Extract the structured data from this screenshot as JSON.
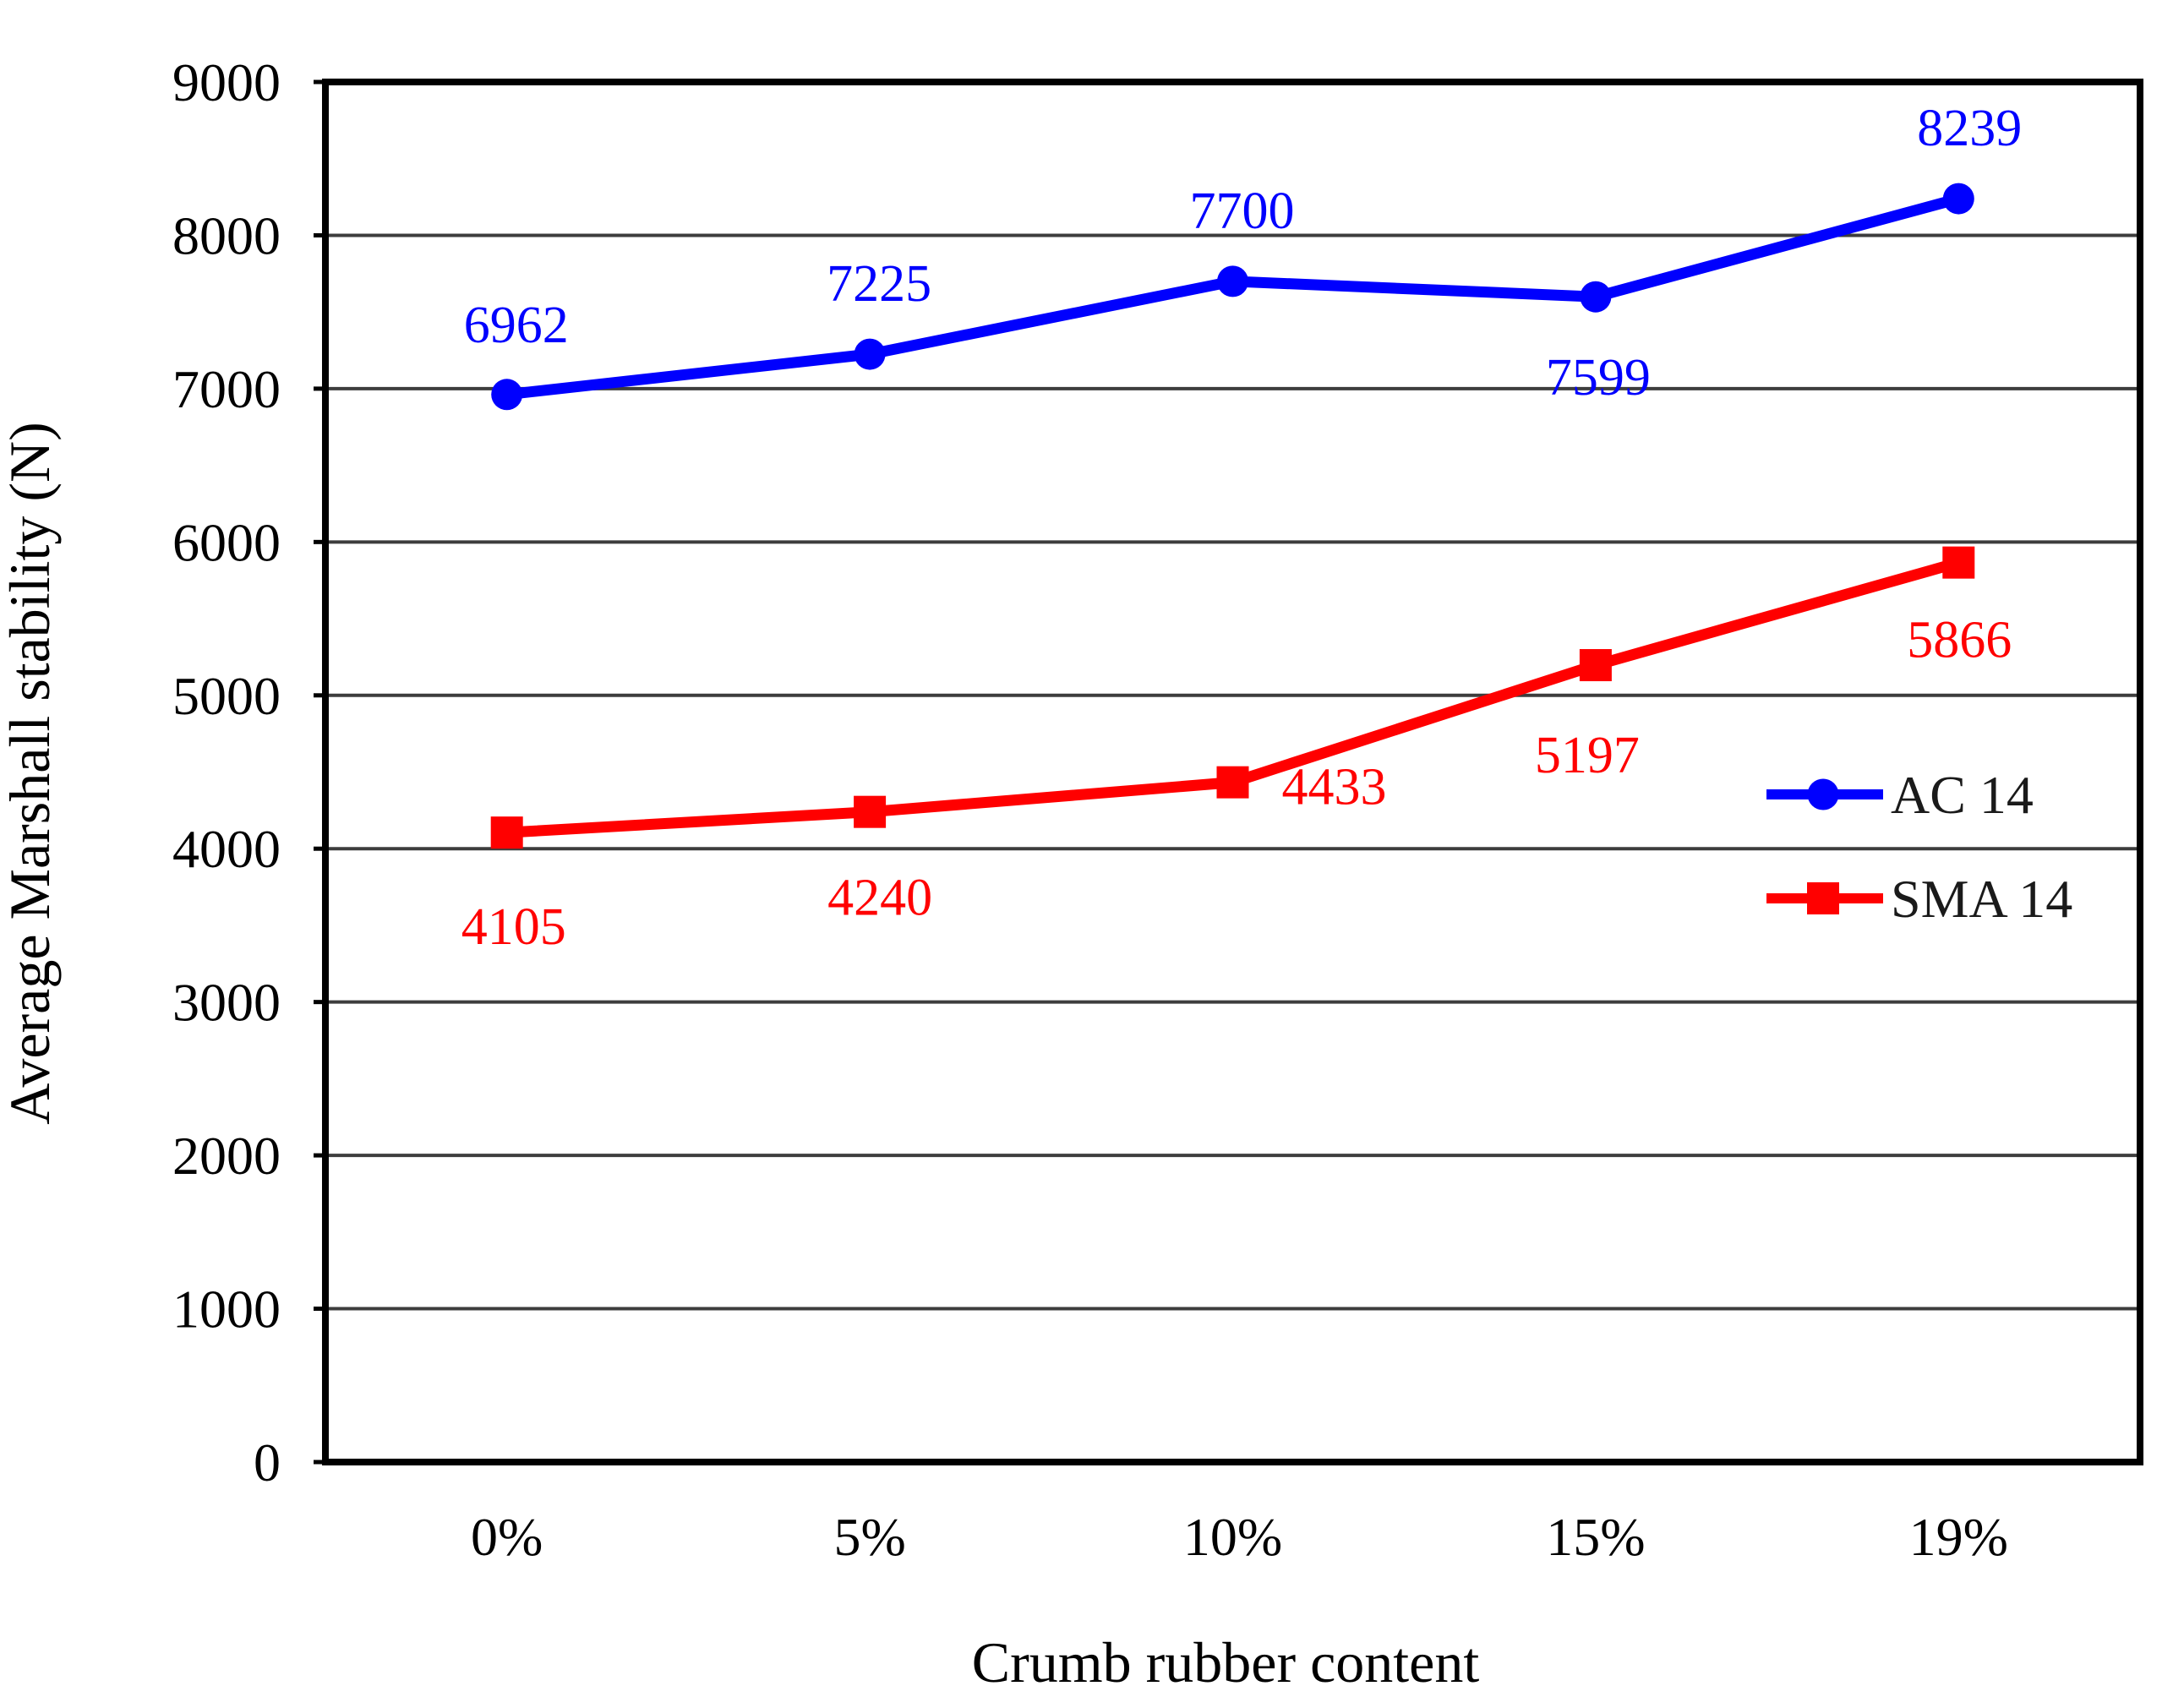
{
  "chart_data": {
    "type": "line",
    "title": "",
    "xlabel": "Crumb rubber content",
    "ylabel": "Average Marshall stability (N)",
    "categories": [
      "0%",
      "5%",
      "10%",
      "15%",
      "19%"
    ],
    "series": [
      {
        "name": "AC 14",
        "color": "#0000FE",
        "marker": "circle",
        "values": [
          6962,
          7225,
          7700,
          7599,
          8239
        ],
        "label_offsets": [
          [
            11,
            -84
          ],
          [
            11,
            -85
          ],
          [
            11,
            -85
          ],
          [
            3,
            94
          ],
          [
            13,
            -85
          ]
        ]
      },
      {
        "name": "SMA 14",
        "color": "#FF0000",
        "marker": "square",
        "values": [
          4105,
          4240,
          4433,
          5197,
          5866
        ],
        "label_offsets": [
          [
            8,
            110
          ],
          [
            12,
            100
          ],
          [
            120,
            4
          ],
          [
            -10,
            105
          ],
          [
            1,
            90
          ]
        ]
      }
    ],
    "ylim": [
      0,
      9000
    ],
    "ytick_step": 1000,
    "yticks": [
      "9000",
      "8000",
      "7000",
      "6000",
      "5000",
      "4000",
      "3000",
      "2000",
      "1000",
      "0"
    ],
    "grid": "horizontal",
    "legend_position": "middle-right",
    "legend_entries": [
      "AC 14",
      "SMA 14"
    ]
  },
  "colors": {
    "axis_border": "#000000",
    "gridline": "#3d3d3d",
    "tick_text": "#000000",
    "legend_text": "#1a1a1a",
    "background": "#ffffff",
    "series_blue": "#0000FE",
    "series_red": "#FF0000"
  }
}
